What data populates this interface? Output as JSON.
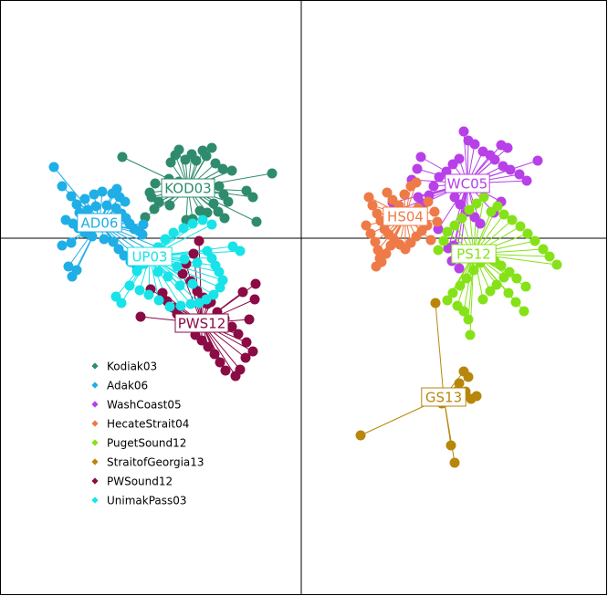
{
  "chart_data": {
    "type": "scatter",
    "title": "",
    "xlabel": "",
    "ylabel": "",
    "grid": false,
    "legend_position": "middle-left",
    "axis_lines": "x=0, y=0",
    "xlim": [
      -330,
      336
    ],
    "ylim": [
      -392,
      261
    ],
    "groups": [
      {
        "name": "Kodiak03",
        "label": "KOD03",
        "color": "#2E8B6E",
        "centroid": [
          -124,
          55
        ],
        "points": [
          [
            -134,
            97
          ],
          [
            -120,
            92
          ],
          [
            -108,
            96
          ],
          [
            -98,
            99
          ],
          [
            -138,
            91
          ],
          [
            -143,
            83
          ],
          [
            -127,
            86
          ],
          [
            -115,
            85
          ],
          [
            -104,
            90
          ],
          [
            -94,
            82
          ],
          [
            -86,
            76
          ],
          [
            -76,
            74
          ],
          [
            -32,
            71
          ],
          [
            -60,
            52
          ],
          [
            -53,
            45
          ],
          [
            -90,
            57
          ],
          [
            -85,
            48
          ],
          [
            -80,
            40
          ],
          [
            -96,
            38
          ],
          [
            -91,
            29
          ],
          [
            -103,
            28
          ],
          [
            -111,
            30
          ],
          [
            -119,
            21
          ],
          [
            -126,
            20
          ],
          [
            -144,
            36
          ],
          [
            -156,
            40
          ],
          [
            -166,
            50
          ],
          [
            -49,
            18
          ],
          [
            -84,
            22
          ],
          [
            -196,
            89
          ],
          [
            -134,
            62
          ],
          [
            -145,
            65
          ],
          [
            -161,
            32
          ],
          [
            -171,
            23
          ],
          [
            -160,
            60
          ],
          [
            -164,
            45
          ]
        ]
      },
      {
        "name": "Adak06",
        "label": "AD06",
        "color": "#1FAEE6",
        "centroid": [
          -221,
          17
        ],
        "points": [
          [
            -271,
            78
          ],
          [
            -262,
            57
          ],
          [
            -252,
            46
          ],
          [
            -246,
            37
          ],
          [
            -237,
            43
          ],
          [
            -227,
            48
          ],
          [
            -218,
            51
          ],
          [
            -207,
            49
          ],
          [
            -202,
            54
          ],
          [
            -199,
            45
          ],
          [
            -193,
            40
          ],
          [
            -243,
            28
          ],
          [
            -234,
            31
          ],
          [
            -225,
            35
          ],
          [
            -213,
            36
          ],
          [
            -203,
            33
          ],
          [
            -197,
            27
          ],
          [
            -192,
            22
          ],
          [
            -188,
            16
          ],
          [
            -183,
            10
          ],
          [
            -178,
            8
          ],
          [
            -174,
            4
          ],
          [
            -258,
            20
          ],
          [
            -250,
            16
          ],
          [
            -244,
            11
          ],
          [
            -237,
            6
          ],
          [
            -229,
            2
          ],
          [
            -216,
            -1
          ],
          [
            -206,
            -4
          ],
          [
            -200,
            -12
          ],
          [
            -194,
            -19
          ],
          [
            -187,
            -26
          ],
          [
            -180,
            -31
          ],
          [
            -172,
            -28
          ],
          [
            -166,
            -22
          ],
          [
            -161,
            -16
          ],
          [
            -157,
            -10
          ],
          [
            -255,
            -31
          ],
          [
            -251,
            -42
          ],
          [
            -246,
            -35
          ],
          [
            -262,
            -8
          ],
          [
            -252,
            -5
          ],
          [
            -173,
            15
          ]
        ]
      },
      {
        "name": "WashCoast05",
        "label": "WC05",
        "color": "#B840E8",
        "centroid": [
          182,
          60
        ],
        "points": [
          [
            178,
            117
          ],
          [
            183,
            107
          ],
          [
            190,
            103
          ],
          [
            199,
            95
          ],
          [
            207,
            91
          ],
          [
            212,
            86
          ],
          [
            221,
            79
          ],
          [
            229,
            75
          ],
          [
            239,
            70
          ],
          [
            247,
            63
          ],
          [
            259,
            85
          ],
          [
            226,
            99
          ],
          [
            219,
            102
          ],
          [
            131,
            89
          ],
          [
            127,
            76
          ],
          [
            121,
            64
          ],
          [
            128,
            45
          ],
          [
            133,
            38
          ],
          [
            140,
            47
          ],
          [
            145,
            57
          ],
          [
            151,
            67
          ],
          [
            159,
            73
          ],
          [
            166,
            81
          ],
          [
            173,
            87
          ],
          [
            168,
            45
          ],
          [
            174,
            37
          ],
          [
            182,
            29
          ],
          [
            190,
            23
          ],
          [
            196,
            16
          ],
          [
            211,
            28
          ],
          [
            219,
            40
          ],
          [
            161,
            -11
          ],
          [
            165,
            -25
          ],
          [
            170,
            -18
          ],
          [
            173,
            -33
          ],
          [
            100,
            39
          ],
          [
            103,
            30
          ],
          [
            167,
            -8
          ],
          [
            150,
            10
          ]
        ]
      },
      {
        "name": "HecateStrait04",
        "label": "HS04",
        "color": "#EE7A47",
        "centroid": [
          114,
          24
        ],
        "points": [
          [
            74,
            45
          ],
          [
            78,
            36
          ],
          [
            83,
            27
          ],
          [
            87,
            19
          ],
          [
            91,
            10
          ],
          [
            96,
            4
          ],
          [
            102,
            -2
          ],
          [
            108,
            -7
          ],
          [
            114,
            -12
          ],
          [
            120,
            -5
          ],
          [
            126,
            2
          ],
          [
            132,
            8
          ],
          [
            138,
            14
          ],
          [
            94,
            50
          ],
          [
            100,
            42
          ],
          [
            107,
            36
          ],
          [
            113,
            48
          ],
          [
            120,
            57
          ],
          [
            126,
            61
          ],
          [
            71,
            14
          ],
          [
            76,
            5
          ],
          [
            81,
            -4
          ],
          [
            84,
            -13
          ],
          [
            86,
            -22
          ],
          [
            82,
            -31
          ],
          [
            88,
            -26
          ],
          [
            93,
            -17
          ],
          [
            98,
            -8
          ],
          [
            128,
            33
          ],
          [
            133,
            24
          ],
          [
            139,
            40
          ],
          [
            146,
            29
          ],
          [
            149,
            18
          ],
          [
            142,
            -2
          ]
        ]
      },
      {
        "name": "PugetSound12",
        "label": "PS12",
        "color": "#86E218",
        "centroid": [
          189,
          -17
        ],
        "points": [
          [
            208,
            29
          ],
          [
            215,
            35
          ],
          [
            222,
            26
          ],
          [
            231,
            20
          ],
          [
            240,
            13
          ],
          [
            248,
            5
          ],
          [
            256,
            -3
          ],
          [
            265,
            -12
          ],
          [
            272,
            -20
          ],
          [
            280,
            -29
          ],
          [
            246,
            -53
          ],
          [
            236,
            -44
          ],
          [
            228,
            -37
          ],
          [
            219,
            -30
          ],
          [
            212,
            -25
          ],
          [
            202,
            -20
          ],
          [
            196,
            -27
          ],
          [
            189,
            -35
          ],
          [
            181,
            -44
          ],
          [
            174,
            -52
          ],
          [
            166,
            -60
          ],
          [
            160,
            -68
          ],
          [
            171,
            -74
          ],
          [
            178,
            -80
          ],
          [
            183,
            -89
          ],
          [
            185,
            -106
          ],
          [
            199,
            -67
          ],
          [
            207,
            -58
          ],
          [
            214,
            -51
          ],
          [
            222,
            -43
          ],
          [
            227,
            -60
          ],
          [
            235,
            -70
          ],
          [
            244,
            -80
          ],
          [
            150,
            -13
          ],
          [
            156,
            -3
          ],
          [
            160,
            7
          ],
          [
            168,
            14
          ],
          [
            176,
            22
          ],
          [
            184,
            31
          ],
          [
            192,
            38
          ],
          [
            200,
            45
          ]
        ]
      },
      {
        "name": "StraitofGeorgia13",
        "label": "GS13",
        "color": "#B8860B",
        "centroid": [
          156,
          -174
        ],
        "points": [
          [
            147,
            -71
          ],
          [
            178,
            -146
          ],
          [
            183,
            -152
          ],
          [
            173,
            -159
          ],
          [
            180,
            -168
          ],
          [
            186,
            -176
          ],
          [
            192,
            -173
          ],
          [
            154,
            -181
          ],
          [
            164,
            -227
          ],
          [
            168,
            -246
          ],
          [
            65,
            -216
          ]
        ]
      },
      {
        "name": "PWSound12",
        "label": "PWS12",
        "color": "#8B0B45",
        "centroid": [
          -109,
          -93
        ],
        "points": [
          [
            -112,
            -3
          ],
          [
            -118,
            -17
          ],
          [
            -126,
            -28
          ],
          [
            -130,
            -39
          ],
          [
            -121,
            -47
          ],
          [
            -114,
            -58
          ],
          [
            -107,
            -65
          ],
          [
            -99,
            -70
          ],
          [
            -92,
            -81
          ],
          [
            -84,
            -88
          ],
          [
            -76,
            -97
          ],
          [
            -69,
            -105
          ],
          [
            -60,
            -114
          ],
          [
            -53,
            -124
          ],
          [
            -61,
            -131
          ],
          [
            -67,
            -144
          ],
          [
            -72,
            -151
          ],
          [
            -83,
            -145
          ],
          [
            -89,
            -136
          ],
          [
            -95,
            -127
          ],
          [
            -102,
            -119
          ],
          [
            -109,
            -112
          ],
          [
            -116,
            -106
          ],
          [
            -124,
            -98
          ],
          [
            -130,
            -90
          ],
          [
            -136,
            -83
          ],
          [
            -141,
            -76
          ],
          [
            -147,
            -69
          ],
          [
            -152,
            -60
          ],
          [
            -165,
            -56
          ],
          [
            -176,
            -86
          ],
          [
            -103,
            -72
          ],
          [
            -93,
            -91
          ],
          [
            -57,
            -89
          ],
          [
            -51,
            -67
          ],
          [
            -50,
            -50
          ],
          [
            -64,
            -59
          ]
        ]
      },
      {
        "name": "UnimakPass03",
        "label": "UP03",
        "color": "#18E3E8",
        "centroid": [
          -166,
          -20
        ],
        "points": [
          [
            -103,
            -14
          ],
          [
            -98,
            -22
          ],
          [
            -94,
            -30
          ],
          [
            -90,
            -37
          ],
          [
            -86,
            -46
          ],
          [
            -89,
            -54
          ],
          [
            -96,
            -62
          ],
          [
            -104,
            -67
          ],
          [
            -112,
            -71
          ],
          [
            -121,
            -72
          ],
          [
            -132,
            -74
          ],
          [
            -144,
            -75
          ],
          [
            -156,
            -68
          ],
          [
            -167,
            -62
          ],
          [
            -177,
            -57
          ],
          [
            -188,
            -52
          ],
          [
            -197,
            -71
          ],
          [
            -203,
            -64
          ],
          [
            -180,
            -36
          ],
          [
            -173,
            -28
          ],
          [
            -163,
            -17
          ],
          [
            -157,
            -10
          ],
          [
            -149,
            -1
          ],
          [
            -140,
            6
          ],
          [
            -129,
            11
          ],
          [
            -119,
            16
          ],
          [
            -108,
            20
          ],
          [
            -98,
            15
          ],
          [
            -75,
            -9
          ],
          [
            -67,
            -14
          ],
          [
            -128,
            -23
          ],
          [
            -136,
            -31
          ],
          [
            -119,
            -50
          ],
          [
            -133,
            -52
          ],
          [
            -146,
            -42
          ],
          [
            -157,
            -37
          ],
          [
            -114,
            -27
          ]
        ]
      }
    ]
  },
  "legend": {
    "items": [
      "Kodiak03",
      "Adak06",
      "WashCoast05",
      "HecateStrait04",
      "PugetSound12",
      "StraitofGeorgia13",
      "PWSound12",
      "UnimakPass03"
    ]
  }
}
